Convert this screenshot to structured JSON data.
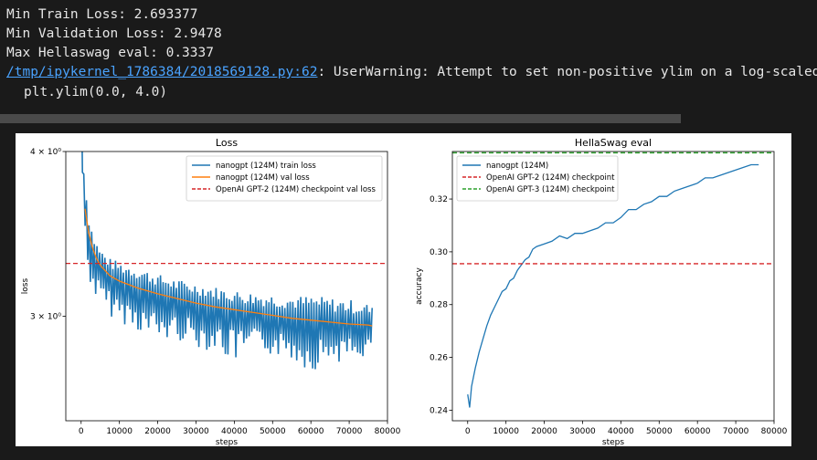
{
  "output": {
    "lines": [
      "Min Train Loss: 2.693377",
      "Min Validation Loss: 2.9478",
      "Max Hellaswag eval: 0.3337"
    ],
    "warning": {
      "path": "/tmp/ipykernel_1786384/2018569128.py:62",
      "sep": ":",
      "message": " UserWarning: Attempt to set non-positive ylim on a log-scaled",
      "code": "plt.ylim(0.0, 4.0)"
    }
  },
  "chart_data": [
    {
      "type": "line",
      "title": "Loss",
      "xlabel": "steps",
      "ylabel": "loss",
      "yscale": "log",
      "ylim": [
        2.5,
        4.0
      ],
      "xlim": [
        -4000,
        80000
      ],
      "xticks": [
        0,
        10000,
        20000,
        30000,
        40000,
        50000,
        60000,
        70000,
        80000
      ],
      "xtick_labels": [
        "0",
        "10000",
        "20000",
        "30000",
        "40000",
        "50000",
        "60000",
        "70000",
        "80000"
      ],
      "yticks": [
        3.0,
        4.0
      ],
      "ytick_labels": [
        "3 × 10⁰",
        "4 × 10⁰"
      ],
      "grid": false,
      "legend": "top-right",
      "series": [
        {
          "name": "nanogpt (124M) train loss",
          "color": "#1f77b4",
          "x": [
            0,
            300,
            600,
            1000,
            1500,
            2000,
            3000,
            4000,
            5000,
            7500,
            10000,
            15000,
            20000,
            25000,
            30000,
            35000,
            40000,
            45000,
            50000,
            55000,
            60000,
            65000,
            70000,
            75000,
            76000
          ],
          "y": [
            4.6,
            4.0,
            3.8,
            3.65,
            3.52,
            3.45,
            3.35,
            3.3,
            3.26,
            3.21,
            3.18,
            3.14,
            3.11,
            3.08,
            3.06,
            3.04,
            3.02,
            3.0,
            2.99,
            2.98,
            2.97,
            2.96,
            2.955,
            2.95,
            2.95
          ],
          "band_low": [
            4.4,
            3.85,
            3.6,
            3.4,
            3.25,
            3.2,
            3.12,
            3.08,
            3.05,
            3.0,
            2.97,
            2.92,
            2.86,
            2.88,
            2.84,
            2.82,
            2.76,
            2.82,
            2.8,
            2.78,
            2.72,
            2.78,
            2.76,
            2.8,
            2.82
          ],
          "band_high": [
            4.8,
            4.1,
            3.95,
            3.82,
            3.7,
            3.6,
            3.48,
            3.42,
            3.38,
            3.32,
            3.3,
            3.27,
            3.23,
            3.2,
            3.18,
            3.16,
            3.14,
            3.13,
            3.12,
            3.11,
            3.11,
            3.1,
            3.09,
            3.07,
            3.05
          ]
        },
        {
          "name": "nanogpt (124M) val loss",
          "color": "#ff7f0e",
          "x": [
            1000,
            2000,
            3000,
            4000,
            5000,
            7500,
            10000,
            15000,
            20000,
            25000,
            30000,
            35000,
            40000,
            45000,
            50000,
            55000,
            60000,
            65000,
            70000,
            75000,
            76000
          ],
          "y": [
            3.62,
            3.47,
            3.38,
            3.32,
            3.28,
            3.22,
            3.19,
            3.15,
            3.12,
            3.095,
            3.07,
            3.05,
            3.035,
            3.02,
            3.005,
            2.99,
            2.98,
            2.97,
            2.96,
            2.955,
            2.95
          ]
        },
        {
          "name": "OpenAI GPT-2 (124M) checkpoint val loss",
          "color": "#d62728",
          "dashed": true,
          "y": 3.29
        }
      ]
    },
    {
      "type": "line",
      "title": "HellaSwag eval",
      "xlabel": "steps",
      "ylabel": "accuracy",
      "ylim": [
        0.236,
        0.338
      ],
      "xlim": [
        -4000,
        80000
      ],
      "xticks": [
        0,
        10000,
        20000,
        30000,
        40000,
        50000,
        60000,
        70000,
        80000
      ],
      "xtick_labels": [
        "0",
        "10000",
        "20000",
        "30000",
        "40000",
        "50000",
        "60000",
        "70000",
        "80000"
      ],
      "yticks": [
        0.24,
        0.26,
        0.28,
        0.3,
        0.32
      ],
      "ytick_labels": [
        "0.24",
        "0.26",
        "0.28",
        "0.30",
        "0.32"
      ],
      "grid": false,
      "legend": "top-left",
      "series": [
        {
          "name": "nanogpt (124M)",
          "color": "#1f77b4",
          "x": [
            0,
            500,
            1000,
            2000,
            3000,
            4000,
            5000,
            6000,
            7000,
            8000,
            9000,
            10000,
            11000,
            12000,
            13000,
            14000,
            15000,
            16000,
            17000,
            18000,
            20000,
            22000,
            24000,
            26000,
            28000,
            30000,
            32000,
            34000,
            36000,
            38000,
            40000,
            42000,
            44000,
            46000,
            48000,
            50000,
            52000,
            54000,
            56000,
            58000,
            60000,
            62000,
            64000,
            66000,
            68000,
            70000,
            72000,
            74000,
            76000
          ],
          "y": [
            0.246,
            0.241,
            0.249,
            0.256,
            0.262,
            0.267,
            0.272,
            0.276,
            0.279,
            0.282,
            0.285,
            0.286,
            0.289,
            0.29,
            0.293,
            0.295,
            0.297,
            0.298,
            0.301,
            0.302,
            0.303,
            0.304,
            0.306,
            0.305,
            0.307,
            0.307,
            0.308,
            0.309,
            0.311,
            0.311,
            0.313,
            0.316,
            0.316,
            0.318,
            0.319,
            0.321,
            0.321,
            0.323,
            0.324,
            0.325,
            0.326,
            0.328,
            0.328,
            0.329,
            0.33,
            0.331,
            0.332,
            0.333,
            0.333
          ]
        },
        {
          "name": "OpenAI GPT-2 (124M) checkpoint",
          "color": "#d62728",
          "dashed": true,
          "y": 0.2955
        },
        {
          "name": "OpenAI GPT-3 (124M) checkpoint",
          "color": "#2ca02c",
          "dashed": true,
          "y": 0.3375
        }
      ]
    }
  ]
}
